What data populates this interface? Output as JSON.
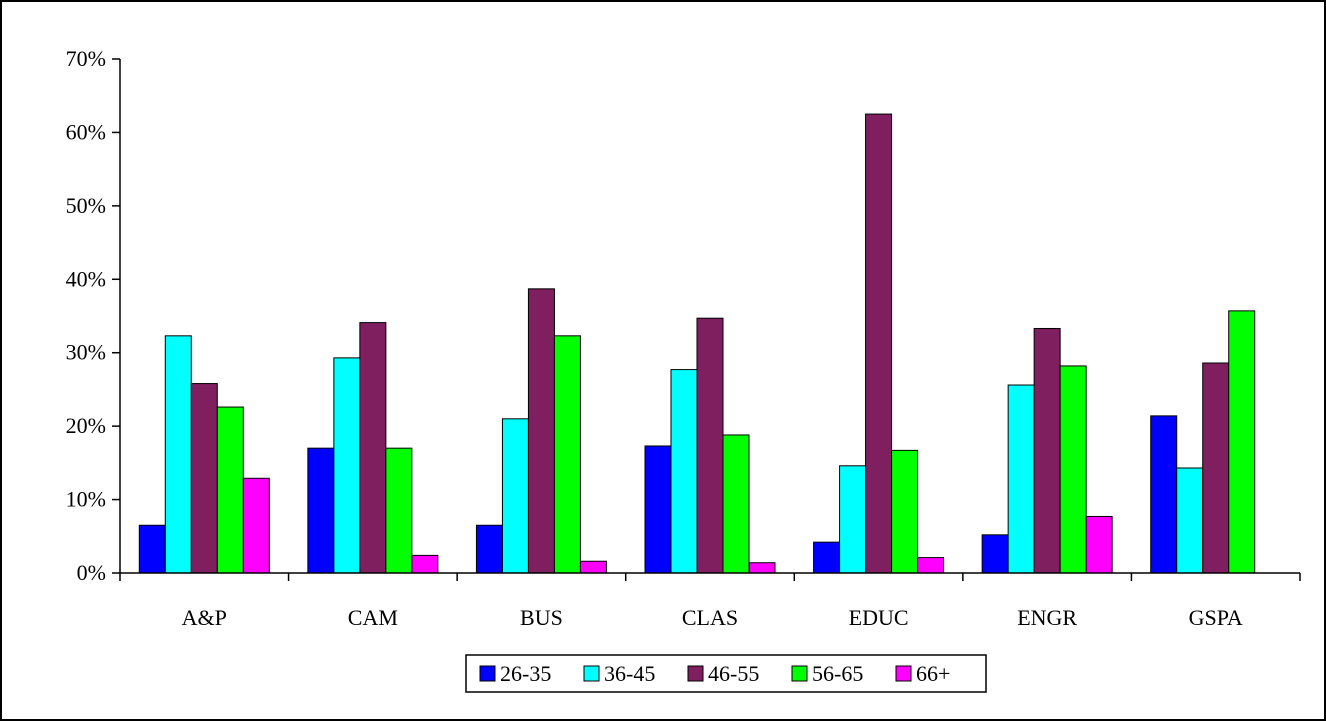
{
  "chart_data": {
    "type": "bar",
    "title": "",
    "xlabel": "",
    "ylabel": "",
    "categories": [
      "A&P",
      "CAM",
      "BUS",
      "CLAS",
      "EDUC",
      "ENGR",
      "GSPA"
    ],
    "ylim": [
      0,
      70
    ],
    "yticks": [
      0,
      10,
      20,
      30,
      40,
      50,
      60,
      70
    ],
    "ytick_format": "%",
    "grid": false,
    "legend_placement": "bottom",
    "series": [
      {
        "name": "26-35",
        "color": "#0000FF",
        "values": [
          6.5,
          17.0,
          6.5,
          17.3,
          4.2,
          5.2,
          21.4
        ]
      },
      {
        "name": "36-45",
        "color": "#00FFFF",
        "values": [
          32.3,
          29.3,
          21.0,
          27.7,
          14.6,
          25.6,
          14.3
        ]
      },
      {
        "name": "46-55",
        "color": "#7F1F5F",
        "values": [
          25.8,
          34.1,
          38.7,
          34.7,
          62.5,
          33.3,
          28.6
        ]
      },
      {
        "name": "56-65",
        "color": "#00FF00",
        "values": [
          22.6,
          17.0,
          32.3,
          18.8,
          16.7,
          28.2,
          35.7
        ]
      },
      {
        "name": "66+",
        "color": "#FF00FF",
        "values": [
          12.9,
          2.4,
          1.6,
          1.4,
          2.1,
          7.7,
          0
        ]
      }
    ]
  }
}
